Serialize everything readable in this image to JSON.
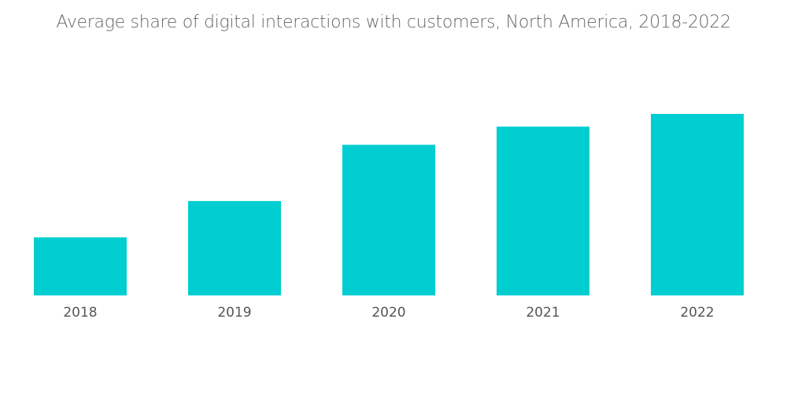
{
  "chart_data": {
    "type": "bar",
    "title": "Average share of digital interactions with customers, North America, 2018-2022",
    "xlabel": "",
    "ylabel": "",
    "categories": [
      "2018",
      "2019",
      "2020",
      "2021",
      "2022"
    ],
    "values": [
      32,
      52,
      83,
      93,
      100
    ],
    "value_note": "relative units; no y-axis shown",
    "ylim": [
      0,
      100
    ],
    "grid": false,
    "legend": "none",
    "bar_color": "#00ced1"
  }
}
